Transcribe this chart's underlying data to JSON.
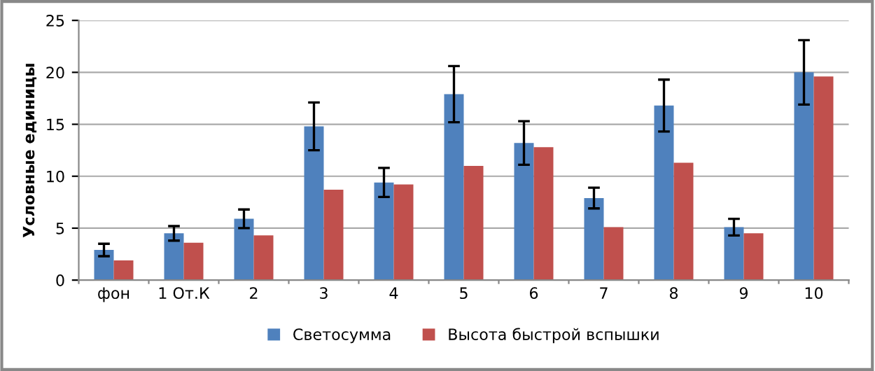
{
  "chart_data": {
    "type": "bar",
    "ylabel": "Условные единицы",
    "categories": [
      "фон",
      "1 От.К",
      "2",
      "3",
      "4",
      "5",
      "6",
      "7",
      "8",
      "9",
      "10"
    ],
    "series": [
      {
        "name": "Светосумма",
        "color": "#4f81bd",
        "values": [
          2.9,
          4.5,
          5.9,
          14.8,
          9.4,
          17.9,
          13.2,
          7.9,
          16.8,
          5.1,
          20.0
        ],
        "errors": [
          0.6,
          0.7,
          0.9,
          2.3,
          1.4,
          2.7,
          2.1,
          1.0,
          2.5,
          0.8,
          3.1
        ]
      },
      {
        "name": "Высота быстрой вспышки",
        "color": "#c0504d",
        "values": [
          1.9,
          3.6,
          4.3,
          8.7,
          9.2,
          11.0,
          12.8,
          5.1,
          11.3,
          4.5,
          19.6
        ]
      }
    ],
    "ylim": [
      0,
      25
    ],
    "yticks": [
      0,
      5,
      10,
      15,
      20,
      25
    ],
    "grid": "y",
    "legend": "bottom"
  }
}
